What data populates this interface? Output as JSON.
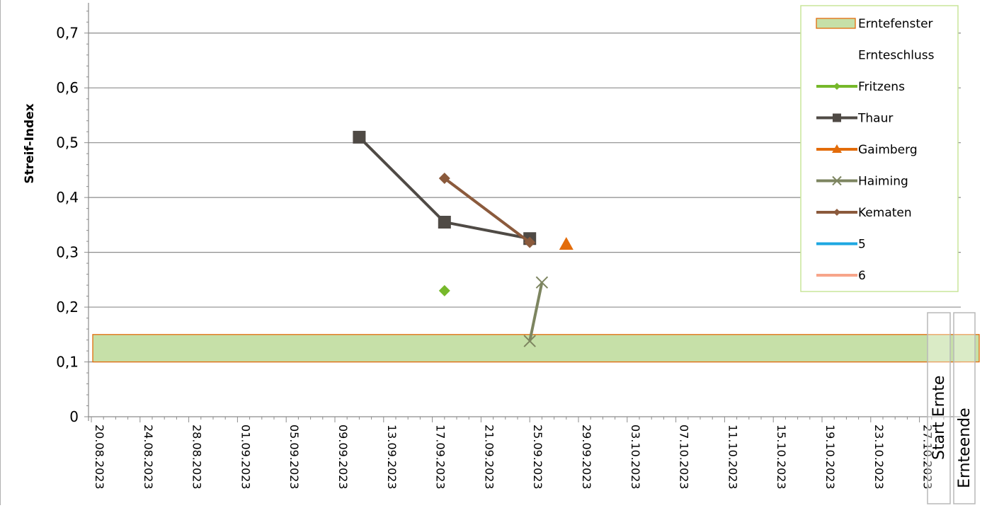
{
  "chart_data": {
    "type": "line",
    "title": "",
    "xlabel": "",
    "ylabel": "Streif-Index",
    "ylim": [
      0,
      0.75
    ],
    "xlim": [
      "20.08.2023",
      "29.10.2023"
    ],
    "grid": true,
    "legend_position": "top-right",
    "y_ticks": [
      "0",
      "0,1",
      "0,2",
      "0,3",
      "0,4",
      "0,5",
      "0,6",
      "0,7"
    ],
    "x_ticks": [
      "20.08.2023",
      "24.08.2023",
      "28.08.2023",
      "01.09.2023",
      "05.09.2023",
      "09.09.2023",
      "13.09.2023",
      "17.09.2023",
      "21.09.2023",
      "25.09.2023",
      "29.09.2023",
      "03.10.2023",
      "07.10.2023",
      "11.10.2023",
      "15.10.2023",
      "19.10.2023",
      "23.10.2023",
      "27.10.2023"
    ],
    "harvest_window": {
      "name": "Erntefenster",
      "y_from": 0.1,
      "y_to": 0.15,
      "color": "#c6e0a8",
      "border": "#e36c0a"
    },
    "markers": [
      {
        "label": "Start Ernte",
        "date": "27.10.2023"
      },
      {
        "label": "Ernteende",
        "date": "28.10.2023"
      }
    ],
    "series": [
      {
        "name": "Ernteschluss",
        "color": "#ffffff",
        "marker": "none",
        "points": []
      },
      {
        "name": "Fritzens",
        "color": "#76b82a",
        "marker": "diamond",
        "points": [
          {
            "x": "18.09.2023",
            "y": 0.23
          }
        ]
      },
      {
        "name": "Thaur",
        "color": "#4f4a45",
        "marker": "square",
        "points": [
          {
            "x": "11.09.2023",
            "y": 0.51
          },
          {
            "x": "18.09.2023",
            "y": 0.355
          },
          {
            "x": "25.09.2023",
            "y": 0.325
          }
        ]
      },
      {
        "name": "Gaimberg",
        "color": "#e36c0a",
        "marker": "triangle",
        "points": [
          {
            "x": "28.09.2023",
            "y": 0.315
          }
        ]
      },
      {
        "name": "Haiming",
        "color": "#7d8560",
        "marker": "x",
        "points": [
          {
            "x": "25.09.2023",
            "y": 0.138
          },
          {
            "x": "26.09.2023",
            "y": 0.245
          }
        ]
      },
      {
        "name": "Kematen",
        "color": "#8b5a3c",
        "marker": "diamond",
        "points": [
          {
            "x": "18.09.2023",
            "y": 0.435
          },
          {
            "x": "25.09.2023",
            "y": 0.318
          }
        ]
      },
      {
        "name": "5",
        "color": "#1ea7e1",
        "marker": "none",
        "points": []
      },
      {
        "name": "6",
        "color": "#f7a58a",
        "marker": "none",
        "points": []
      }
    ]
  }
}
